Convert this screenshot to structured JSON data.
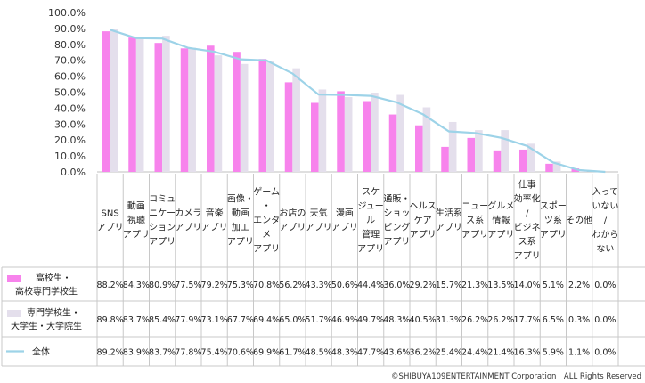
{
  "chart_data": {
    "type": "bar",
    "categories": [
      [
        "SNS",
        "アプリ"
      ],
      [
        "動画",
        "視聴",
        "アプリ"
      ],
      [
        "コミュ",
        "ニケー",
        "ション",
        "アプリ"
      ],
      [
        "カメラ",
        "アプリ"
      ],
      [
        "音楽",
        "アプリ"
      ],
      [
        "画像・",
        "動画",
        "加工",
        "アプリ"
      ],
      [
        "ゲーム",
        "・",
        "エンタ",
        "メ",
        "アプリ"
      ],
      [
        "お店の",
        "アプリ"
      ],
      [
        "天気",
        "アプリ"
      ],
      [
        "漫画",
        "アプリ"
      ],
      [
        "スケ",
        "ジュー",
        "ル",
        "管理",
        "アプリ"
      ],
      [
        "通販・",
        "ショッ",
        "ピング",
        "アプリ"
      ],
      [
        "ヘルス",
        "ケア",
        "アプリ"
      ],
      [
        "生活系",
        "アプリ"
      ],
      [
        "ニュー",
        "ス系",
        "アプリ"
      ],
      [
        "グルメ",
        "情報",
        "アプリ"
      ],
      [
        "仕事",
        "効率化",
        "/",
        "ビジネ",
        "ス系",
        "アプリ"
      ],
      [
        "スポー",
        "ツ系",
        "アプリ"
      ],
      [
        "その他"
      ],
      [
        "入って",
        "いない",
        "/",
        "わから",
        "ない"
      ]
    ],
    "series": [
      {
        "name": [
          "高校生・",
          "高校専門学校生"
        ],
        "kind": "bar",
        "color": "#f783ec",
        "values": [
          88.2,
          84.3,
          80.9,
          77.5,
          79.2,
          75.3,
          70.8,
          56.2,
          43.3,
          50.6,
          44.4,
          36.0,
          29.2,
          15.7,
          21.3,
          13.5,
          14.0,
          5.1,
          2.2,
          0.0
        ],
        "labels": [
          "88.2%",
          "84.3%",
          "80.9%",
          "77.5%",
          "79.2%",
          "75.3%",
          "70.8%",
          "56.2%",
          "43.3%",
          "50.6%",
          "44.4%",
          "36.0%",
          "29.2%",
          "15.7%",
          "21.3%",
          "13.5%",
          "14.0%",
          "5.1%",
          "2.2%",
          "0.0%"
        ]
      },
      {
        "name": [
          "専門学校生・",
          "大学生・大学院生"
        ],
        "kind": "bar",
        "color": "#e4dfec",
        "values": [
          89.8,
          83.7,
          85.4,
          77.9,
          73.1,
          67.7,
          69.4,
          65.0,
          51.7,
          46.9,
          49.7,
          48.3,
          40.5,
          31.3,
          26.2,
          26.2,
          17.7,
          6.5,
          0.3,
          0.0
        ],
        "labels": [
          "89.8%",
          "83.7%",
          "85.4%",
          "77.9%",
          "73.1%",
          "67.7%",
          "69.4%",
          "65.0%",
          "51.7%",
          "46.9%",
          "49.7%",
          "48.3%",
          "40.5%",
          "31.3%",
          "26.2%",
          "26.2%",
          "17.7%",
          "6.5%",
          "0.3%",
          "0.0%"
        ]
      },
      {
        "name": [
          "全体"
        ],
        "kind": "line",
        "color": "#9dd3e8",
        "values": [
          89.2,
          83.9,
          83.7,
          77.8,
          75.4,
          70.6,
          69.9,
          61.7,
          48.5,
          48.3,
          47.7,
          43.6,
          36.2,
          25.4,
          24.4,
          21.4,
          16.3,
          5.9,
          1.1,
          0.0
        ],
        "labels": [
          "89.2%",
          "83.9%",
          "83.7%",
          "77.8%",
          "75.4%",
          "70.6%",
          "69.9%",
          "61.7%",
          "48.5%",
          "48.3%",
          "47.7%",
          "43.6%",
          "36.2%",
          "25.4%",
          "24.4%",
          "21.4%",
          "16.3%",
          "5.9%",
          "1.1%",
          "0.0%"
        ]
      }
    ],
    "ylim": [
      0,
      100
    ],
    "yticks": [
      "0.0%",
      "10.0%",
      "20.0%",
      "30.0%",
      "40.0%",
      "50.0%",
      "60.0%",
      "70.0%",
      "80.0%",
      "90.0%",
      "100.0%"
    ],
    "grid": false,
    "legend": "data-table-left",
    "copyright": "©SHIBUYA109ENTERTAINMENT Corporation　ALL Rights Reserved"
  }
}
